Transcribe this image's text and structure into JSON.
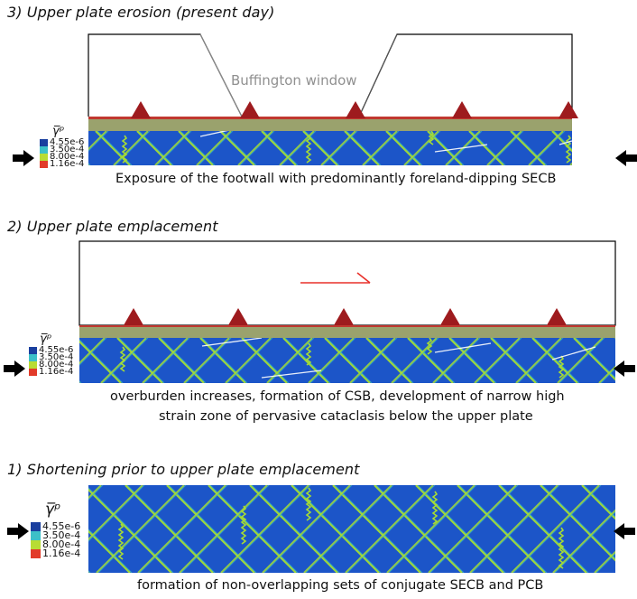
{
  "colors": {
    "field": "#1c55c8",
    "field_dark": "#1745a8",
    "band": "#a7dd33",
    "band_faint": "#36b3c4",
    "strip_olive": "#9aa26d",
    "strip_red": "#c0382f",
    "triangle": "#9e1b1e",
    "arrow_red": "#e8302a",
    "legend": [
      "#1a3f9f",
      "#3cc0c8",
      "#b8dc34",
      "#e23b2a"
    ]
  },
  "panels": {
    "p3": {
      "title": "3) Upper plate erosion (present day)",
      "window_label": "Buffington window",
      "legend_symbol": "γ̅ᵖ",
      "legend_values": [
        "4.55e-6",
        "3.50e-4",
        "8.00e-4",
        "1.16e-4"
      ],
      "caption": "Exposure of the footwall with predominantly foreland-dipping SECB"
    },
    "p2": {
      "title": "2) Upper plate emplacement",
      "legend_symbol": "γ̅ᵖ",
      "legend_values": [
        "4.55e-6",
        "3.50e-4",
        "8.00e-4",
        "1.16e-4"
      ],
      "caption_line1": "overburden increases, formation of CSB, development of narrow high",
      "caption_line2": "strain zone of pervasive cataclasis below the upper plate"
    },
    "p1": {
      "title": "1) Shortening prior to upper plate emplacement",
      "legend_symbol": "γ̅ᵖ",
      "legend_values": [
        "4.55e-6",
        "3.50e-4",
        "8.00e-4",
        "1.16e-4"
      ],
      "caption": "formation of non-overlapping sets of conjugate SECB and PCB"
    }
  }
}
